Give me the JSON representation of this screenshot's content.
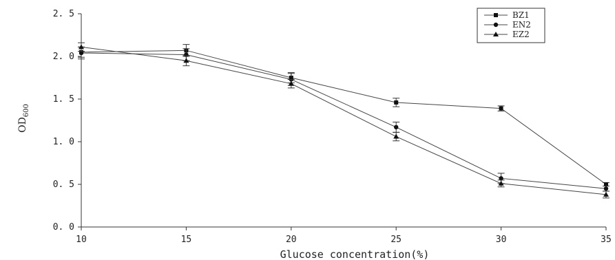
{
  "chart_data": {
    "type": "line",
    "title": "",
    "xlabel": "Glucose concentration(%)",
    "ylabel_main": "OD",
    "ylabel_sub": "600",
    "x": [
      10,
      15,
      20,
      25,
      30,
      35
    ],
    "xlim": [
      10,
      35
    ],
    "ylim": [
      0,
      2.5
    ],
    "xticks": [
      "10",
      "15",
      "20",
      "25",
      "30",
      "35"
    ],
    "yticks": [
      "0. 0",
      "0. 5",
      "1. 0",
      "1. 5",
      "2. 0",
      "2. 5"
    ],
    "ytick_values": [
      0,
      0.5,
      1.0,
      1.5,
      2.0,
      2.5
    ],
    "grid": false,
    "legend_position": "top-right",
    "series": [
      {
        "name": "BZ1",
        "marker": "square",
        "values": [
          2.05,
          2.07,
          1.75,
          1.46,
          1.39,
          0.5
        ],
        "errors": [
          0.06,
          0.07,
          0.06,
          0.05,
          0.03,
          0.02
        ]
      },
      {
        "name": "EN2",
        "marker": "circle",
        "values": [
          2.04,
          2.02,
          1.73,
          1.17,
          0.57,
          0.45
        ],
        "errors": [
          0.07,
          0.07,
          0.07,
          0.06,
          0.06,
          0.03
        ]
      },
      {
        "name": "EZ2",
        "marker": "triangle",
        "values": [
          2.11,
          1.95,
          1.68,
          1.06,
          0.51,
          0.38
        ],
        "errors": [
          0.05,
          0.06,
          0.05,
          0.05,
          0.04,
          0.04
        ]
      }
    ]
  }
}
